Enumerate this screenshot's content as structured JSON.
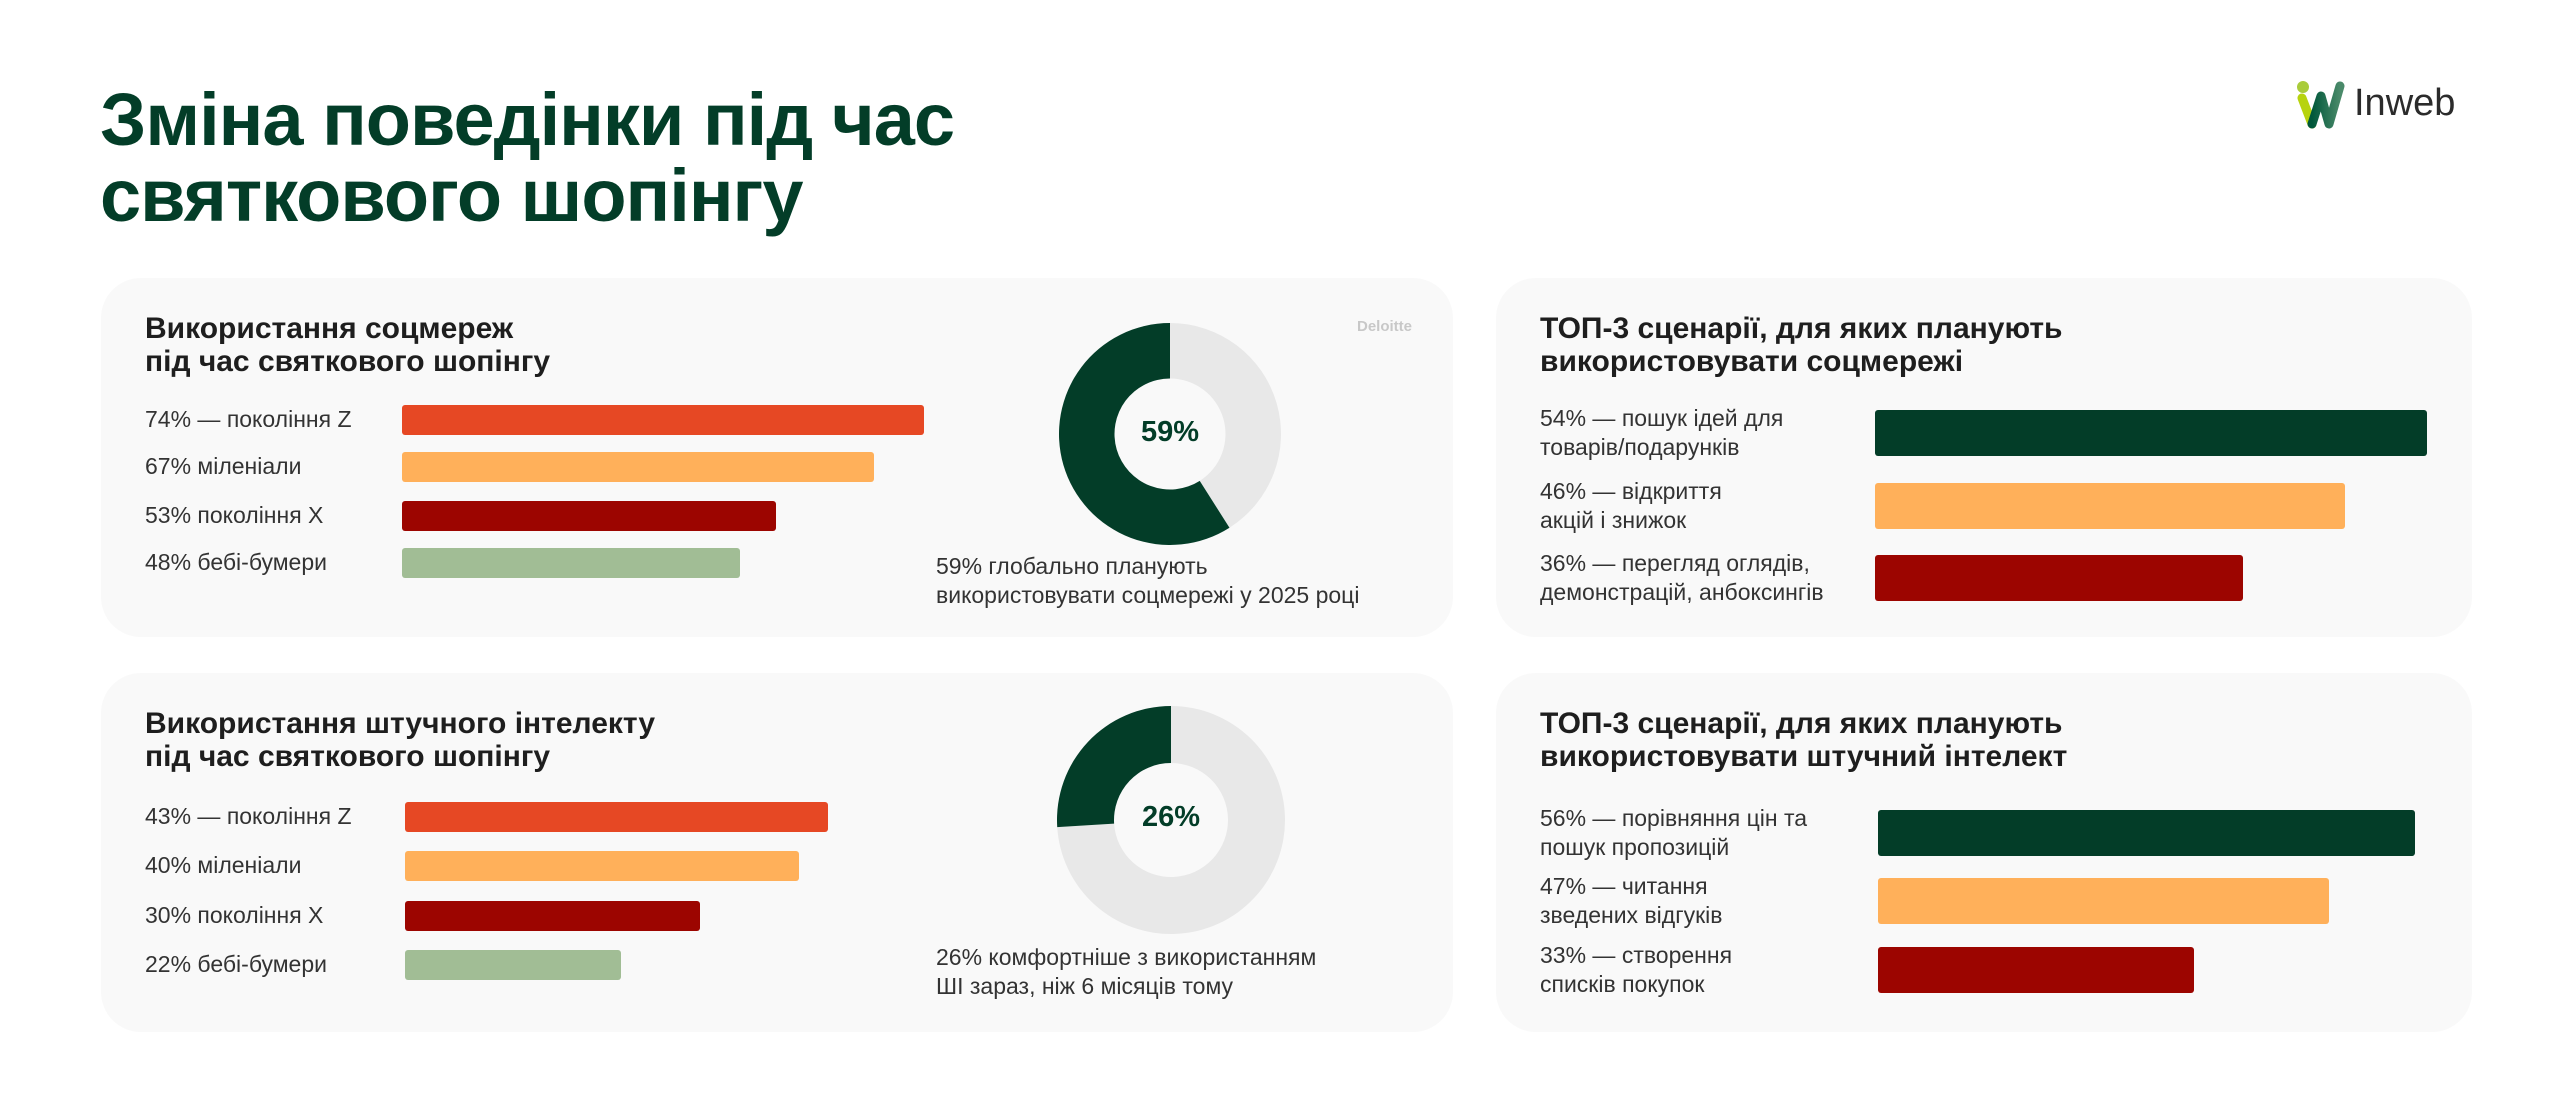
{
  "header": {
    "title_line1": "Зміна поведінки під час",
    "title_line2": "святкового шопінгу",
    "logo_text": "Inweb"
  },
  "colors": {
    "dark_green": "#033d28",
    "red_orange": "#e64824",
    "orange": "#ffb05a",
    "dark_red": "#9c0500",
    "sage": "#a1bd95",
    "donut_rest": "#e8e8e8"
  },
  "chart_data": [
    {
      "type": "bar",
      "orientation": "horizontal",
      "title": "Використання соцмереж під час святкового шопінгу",
      "categories": [
        "74% — покоління Z",
        "67% міленіали",
        "53% покоління X",
        "48% бебі-бумери"
      ],
      "values": [
        74,
        67,
        53,
        48
      ],
      "bar_colors": [
        "#e64824",
        "#ffb05a",
        "#9c0500",
        "#a1bd95"
      ]
    },
    {
      "type": "pie",
      "variant": "donut",
      "source": "Deloitte",
      "value": 59,
      "center_label": "59%",
      "caption_line1": "59% глобально планують",
      "caption_line2": "використовувати соцмережі у 2025 році"
    },
    {
      "type": "bar",
      "orientation": "horizontal",
      "title": "ТОП-3 сценарії, для яких планують використовувати соцмережі",
      "categories": [
        "54% — пошук ідей для товарів/подарунків",
        "46% — відкриття акцій і знижок",
        "36% — перегляд оглядів, демонстрацій, анбоксингів"
      ],
      "label_lines": [
        [
          "54% — пошук ідей для",
          "товарів/подарунків"
        ],
        [
          "46% — відкриття",
          "акцій і знижок"
        ],
        [
          "36% — перегляд оглядів,",
          "демонстрацій, анбоксингів"
        ]
      ],
      "values": [
        54,
        46,
        36
      ],
      "bar_colors": [
        "#033d28",
        "#ffb05a",
        "#9c0500"
      ]
    },
    {
      "type": "bar",
      "orientation": "horizontal",
      "title": "Використання штучного інтелекту під час святкового шопінгу",
      "categories": [
        "43% — покоління Z",
        "40% міленіали",
        "30% покоління X",
        "22% бебі-бумери"
      ],
      "values": [
        43,
        40,
        30,
        22
      ],
      "bar_colors": [
        "#e64824",
        "#ffb05a",
        "#9c0500",
        "#a1bd95"
      ]
    },
    {
      "type": "pie",
      "variant": "donut",
      "value": 26,
      "center_label": "26%",
      "caption_line1": "26% комфортніше з використанням",
      "caption_line2": "ШІ зараз, ніж 6 місяців тому"
    },
    {
      "type": "bar",
      "orientation": "horizontal",
      "title": "ТОП-3 сценарії, для яких планують використовувати штучний інтелект",
      "categories": [
        "56% — порівняння цін та пошук пропозицій",
        "47% — читання зведених відгуків",
        "33% — створення списків покупок"
      ],
      "label_lines": [
        [
          "56% — порівняння цін та",
          "пошук пропозицій"
        ],
        [
          "47% — читання",
          "зведених відгуків"
        ],
        [
          "33% — створення",
          "списків покупок"
        ]
      ],
      "values": [
        56,
        47,
        33
      ],
      "bar_colors": [
        "#033d28",
        "#ffb05a",
        "#9c0500"
      ]
    }
  ],
  "cards": {
    "social_title_line1": "Використання соцмереж",
    "social_title_line2": "під час святкового шопінгу",
    "social_top_title_line1": "ТОП-3 сценарії, для яких планують",
    "social_top_title_line2": "використовувати соцмережі",
    "ai_title_line1": "Використання штучного інтелекту",
    "ai_title_line2": "під час святкового шопінгу",
    "ai_top_title_line1": "ТОП-3 сценарії, для яких планують",
    "ai_top_title_line2": "використовувати штучний інтелект"
  }
}
